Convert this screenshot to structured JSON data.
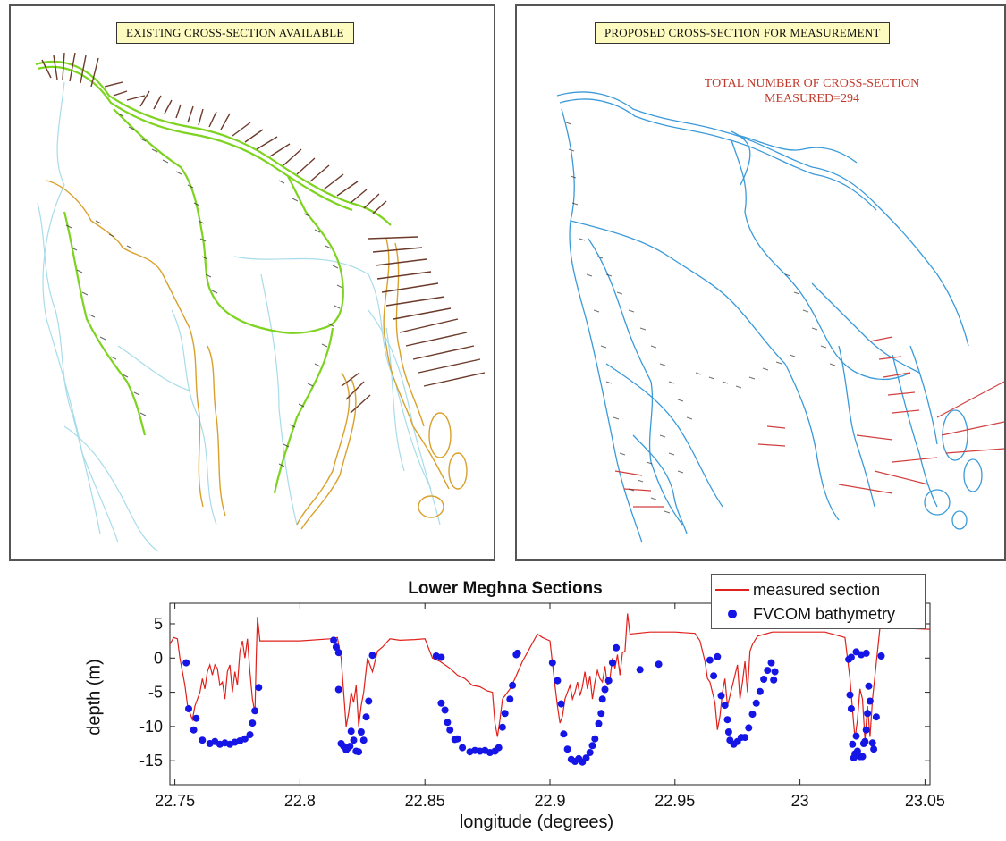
{
  "map_left": {
    "banner": "EXISTING CROSS-SECTION AVAILABLE",
    "colors": {
      "existing_river": "#7ed321",
      "other_river": "#a7dcea",
      "tidal_river": "#d9a02b",
      "section_mark": "#6b3a2a"
    }
  },
  "map_right": {
    "banner": "PROPOSED CROSS-SECTION FOR MEASUREMENT",
    "note_line1": "TOTAL NUMBER OF CROSS-SECTION",
    "note_line2": "MEASURED=294",
    "colors": {
      "river": "#3a9ad9",
      "section_mark": "#d04040",
      "note": "#c0392b"
    }
  },
  "chart_data": {
    "type": "line",
    "title": "Lower Meghna Sections",
    "xlabel": "longitude (degrees)",
    "ylabel": "depth (m)",
    "xlim": [
      22.748,
      23.052
    ],
    "ylim": [
      -18.5,
      8
    ],
    "xticks": [
      22.75,
      22.8,
      22.85,
      22.9,
      22.95,
      23,
      23.05
    ],
    "xtick_labels": [
      "22.75",
      "22.8",
      "22.85",
      "22.9",
      "22.95",
      "23",
      "23.05"
    ],
    "yticks": [
      5,
      0,
      -5,
      -10,
      -15
    ],
    "ytick_labels": [
      "5",
      "0",
      "-5",
      "-10",
      "-15"
    ],
    "legend_position": "top-right",
    "series": [
      {
        "name": "measured section",
        "style": "line",
        "color": "#e0201a",
        "x": [
          22.748,
          22.7495,
          22.751,
          22.752,
          22.753,
          22.754,
          22.755,
          22.756,
          22.757,
          22.758,
          22.759,
          22.76,
          22.761,
          22.762,
          22.763,
          22.764,
          22.765,
          22.766,
          22.767,
          22.768,
          22.769,
          22.77,
          22.771,
          22.772,
          22.773,
          22.774,
          22.775,
          22.776,
          22.777,
          22.778,
          22.779,
          22.78,
          22.781,
          22.782,
          22.7825,
          22.783,
          22.784,
          22.8,
          22.812,
          22.815,
          22.8165,
          22.8175,
          22.8185,
          22.8195,
          22.8205,
          22.8215,
          22.8225,
          22.8235,
          22.8245,
          22.8255,
          22.827,
          22.829,
          22.831,
          22.833,
          22.836,
          22.84,
          22.846,
          22.85,
          22.853,
          22.856,
          22.858,
          22.86,
          22.863,
          22.866,
          22.869,
          22.872,
          22.875,
          22.877,
          22.878,
          22.879,
          22.88,
          22.881,
          22.882,
          22.884,
          22.886,
          22.889,
          22.892,
          22.895,
          22.897,
          22.9,
          22.902,
          22.903,
          22.904,
          22.905,
          22.906,
          22.907,
          22.908,
          22.909,
          22.91,
          22.911,
          22.912,
          22.913,
          22.914,
          22.915,
          22.916,
          22.917,
          22.918,
          22.919,
          22.92,
          22.921,
          22.922,
          22.923,
          22.924,
          22.925,
          22.926,
          22.927,
          22.928,
          22.929,
          22.93,
          22.931,
          22.932,
          22.94,
          22.95,
          22.958,
          22.96,
          22.962,
          22.963,
          22.964,
          22.965,
          22.966,
          22.967,
          22.968,
          22.969,
          22.97,
          22.971,
          22.972,
          22.973,
          22.974,
          22.975,
          22.976,
          22.977,
          22.978,
          22.979,
          22.98,
          22.981,
          22.983,
          22.986,
          22.989,
          22.991,
          23.0,
          23.01,
          23.018,
          23.02,
          23.021,
          23.022,
          23.023,
          23.024,
          23.025,
          23.026,
          23.027,
          23.028,
          23.029,
          23.032,
          23.052
        ],
        "y": [
          2,
          3,
          2.8,
          0,
          -2,
          -4,
          -6.8,
          -8,
          -9,
          -7,
          -6,
          -5,
          -3,
          -4.5,
          -2,
          -1,
          -2.5,
          -1,
          -1.5,
          -4,
          -3.5,
          -6,
          -2,
          -1,
          -5,
          -2,
          -4,
          1,
          2.5,
          0,
          2.8,
          -2,
          -6,
          -8,
          0,
          6,
          2.5,
          2.5,
          2.8,
          3,
          0,
          -5,
          -10,
          -8,
          -5,
          -6.5,
          -4,
          -10,
          -7,
          -5,
          0,
          -2,
          1,
          1.6,
          2.8,
          2.6,
          2.7,
          2.8,
          0,
          -0.5,
          -1,
          -1.5,
          -2.5,
          -3,
          -4,
          -4.2,
          -4.8,
          -5,
          -9.5,
          -11.5,
          -9,
          -6,
          -5.5,
          -4.5,
          -3,
          -0.5,
          1.5,
          3.5,
          3,
          2.5,
          -4,
          -7,
          -9.5,
          -8.5,
          -6,
          -5,
          -4,
          -6,
          -5,
          -3.5,
          -5.5,
          -4.2,
          -2,
          -4.5,
          -2.6,
          -6,
          -3.5,
          -1.8,
          -3,
          -3.5,
          -1.2,
          -4,
          -3,
          0,
          -1.5,
          0.5,
          -2.5,
          0.8,
          1,
          6.5,
          3.5,
          3.8,
          3.8,
          3.6,
          2.5,
          -0.5,
          -3,
          -3.5,
          -5,
          -6.5,
          -10.5,
          -8.5,
          -5,
          -3,
          -7,
          -5.5,
          -4,
          -2.5,
          -1,
          -6,
          -3.5,
          -0.5,
          -5,
          1,
          2,
          3.2,
          3.5,
          3.8,
          3.8,
          3.8,
          3.8,
          3,
          -3,
          -7.5,
          -11.8,
          -9,
          -4.5,
          -6,
          -12,
          -7,
          -11.5,
          -6,
          4.5,
          4.2
        ]
      },
      {
        "name": "FVCOM bathymetry",
        "style": "scatter",
        "color": "#1515e6",
        "points": [
          [
            22.7545,
            -0.7
          ],
          [
            22.7555,
            -7.4
          ],
          [
            22.7575,
            -10.5
          ],
          [
            22.7585,
            -8.8
          ],
          [
            22.761,
            -12
          ],
          [
            22.764,
            -12.5
          ],
          [
            22.766,
            -12.2
          ],
          [
            22.768,
            -12.6
          ],
          [
            22.77,
            -12.4
          ],
          [
            22.772,
            -12.6
          ],
          [
            22.774,
            -12.3
          ],
          [
            22.776,
            -12.1
          ],
          [
            22.778,
            -11.8
          ],
          [
            22.78,
            -11.2
          ],
          [
            22.781,
            -9.5
          ],
          [
            22.782,
            -7.7
          ],
          [
            22.7835,
            -4.3
          ],
          [
            22.8135,
            2.6
          ],
          [
            22.8145,
            1.6
          ],
          [
            22.8155,
            0.8
          ],
          [
            22.8155,
            -4.6
          ],
          [
            22.8165,
            -12.5
          ],
          [
            22.8175,
            -12.9
          ],
          [
            22.8185,
            -13.4
          ],
          [
            22.819,
            -13.2
          ],
          [
            22.82,
            -12.9
          ],
          [
            22.8205,
            -10.7
          ],
          [
            22.8215,
            -12.0
          ],
          [
            22.8225,
            -13.6
          ],
          [
            22.8235,
            -13.7
          ],
          [
            22.8245,
            -10.8
          ],
          [
            22.8255,
            -12.0
          ],
          [
            22.8265,
            -8.6
          ],
          [
            22.8275,
            -6.3
          ],
          [
            22.829,
            0.4
          ],
          [
            22.8545,
            0.3
          ],
          [
            22.8565,
            0.1
          ],
          [
            22.8565,
            -6.6
          ],
          [
            22.858,
            -7.6
          ],
          [
            22.859,
            -9.4
          ],
          [
            22.86,
            -10.5
          ],
          [
            22.862,
            -11.9
          ],
          [
            22.863,
            -11.8
          ],
          [
            22.865,
            -13.1
          ],
          [
            22.868,
            -13.7
          ],
          [
            22.87,
            -13.5
          ],
          [
            22.872,
            -13.6
          ],
          [
            22.874,
            -13.5
          ],
          [
            22.876,
            -13.8
          ],
          [
            22.878,
            -13.6
          ],
          [
            22.8795,
            -13.1
          ],
          [
            22.881,
            -10.1
          ],
          [
            22.882,
            -8.1
          ],
          [
            22.884,
            -6.0
          ],
          [
            22.885,
            -4.0
          ],
          [
            22.8865,
            0.5
          ],
          [
            22.887,
            0.7
          ],
          [
            22.901,
            -0.7
          ],
          [
            22.903,
            -3.3
          ],
          [
            22.9045,
            -6.7
          ],
          [
            22.9055,
            -11.1
          ],
          [
            22.907,
            -13.3
          ],
          [
            22.9085,
            -14.8
          ],
          [
            22.91,
            -15.1
          ],
          [
            22.9115,
            -14.7
          ],
          [
            22.913,
            -15.2
          ],
          [
            22.9145,
            -14.6
          ],
          [
            22.916,
            -13.8
          ],
          [
            22.917,
            -12.8
          ],
          [
            22.918,
            -11.8
          ],
          [
            22.9195,
            -9.6
          ],
          [
            22.9205,
            -8.1
          ],
          [
            22.921,
            -6.0
          ],
          [
            22.922,
            -4.6
          ],
          [
            22.9235,
            -3.3
          ],
          [
            22.925,
            -0.7
          ],
          [
            22.9265,
            1.5
          ],
          [
            22.936,
            -1.7
          ],
          [
            22.9435,
            -0.9
          ],
          [
            22.964,
            -0.3
          ],
          [
            22.9655,
            -2.6
          ],
          [
            22.967,
            0.2
          ],
          [
            22.9685,
            -5.5
          ],
          [
            22.97,
            -6.9
          ],
          [
            22.971,
            -9.0
          ],
          [
            22.9715,
            -10.8
          ],
          [
            22.972,
            -12.0
          ],
          [
            22.9735,
            -12.6
          ],
          [
            22.975,
            -12.2
          ],
          [
            22.9765,
            -11.6
          ],
          [
            22.978,
            -11.6
          ],
          [
            22.9795,
            -10.2
          ],
          [
            22.981,
            -8.2
          ],
          [
            22.9825,
            -6.6
          ],
          [
            22.984,
            -4.9
          ],
          [
            22.9855,
            -3.1
          ],
          [
            22.987,
            -1.8
          ],
          [
            22.9885,
            -0.7
          ],
          [
            22.99,
            -2.0
          ],
          [
            22.9895,
            -3.2
          ],
          [
            23.0195,
            -0.2
          ],
          [
            23.02,
            -5.4
          ],
          [
            23.0205,
            -7.4
          ],
          [
            23.021,
            -12.6
          ],
          [
            23.0215,
            -14.6
          ],
          [
            23.022,
            -14.0
          ],
          [
            23.0225,
            -11.4
          ],
          [
            23.023,
            -13.6
          ],
          [
            23.024,
            -14.4
          ],
          [
            23.025,
            -14.4
          ],
          [
            23.0255,
            -12.5
          ],
          [
            23.026,
            -12.2
          ],
          [
            23.0265,
            -10.5
          ],
          [
            23.027,
            -8.1
          ],
          [
            23.0275,
            -4.1
          ],
          [
            23.028,
            -6.3
          ],
          [
            23.029,
            -12.4
          ],
          [
            23.0295,
            -13.3
          ],
          [
            23.0305,
            -8.6
          ],
          [
            23.0325,
            0.3
          ],
          [
            23.0205,
            0.1
          ],
          [
            23.0225,
            0.9
          ],
          [
            23.0245,
            0.5
          ],
          [
            23.0265,
            0.7
          ]
        ]
      }
    ]
  }
}
